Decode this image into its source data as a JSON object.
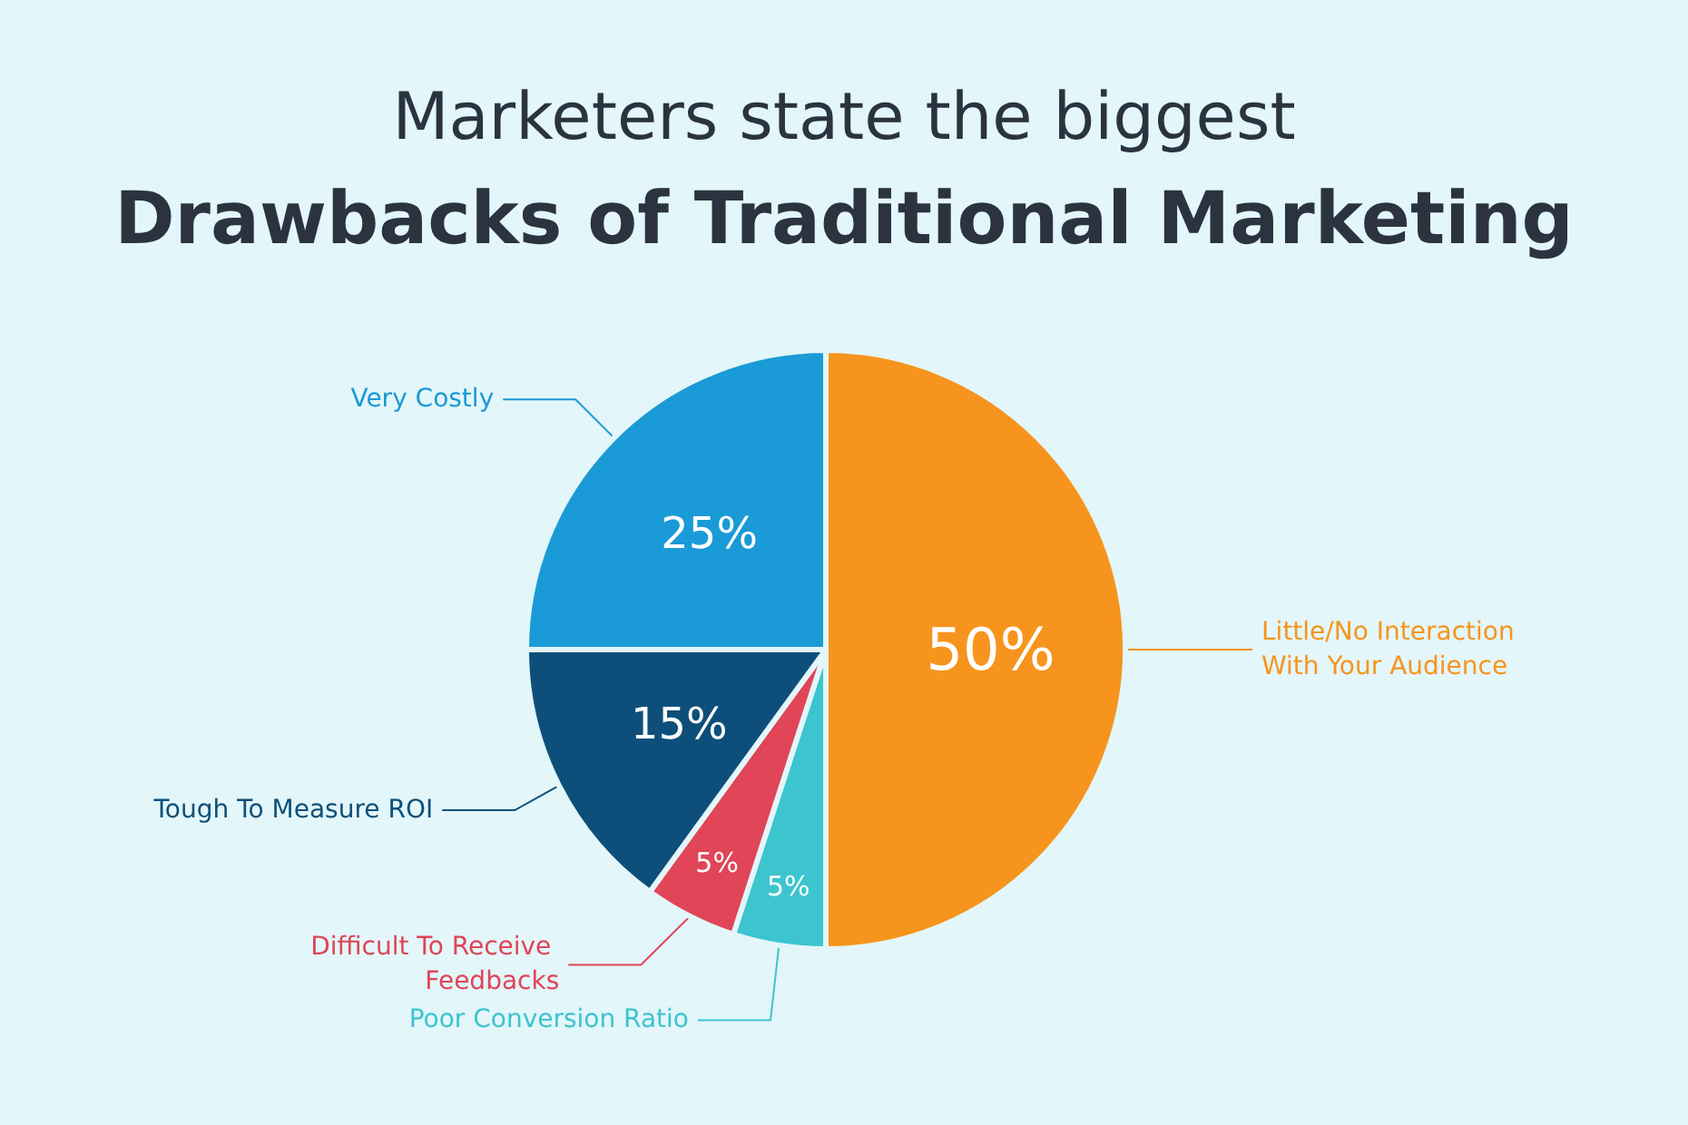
{
  "chart_data": {
    "type": "pie",
    "title": "Drawbacks of Traditional Marketing",
    "subtitle": "Marketers state the biggest",
    "categories": [
      "Little/No Interaction With Your Audience",
      "Poor Conversion Ratio",
      "Difficult To Receive Feedbacks",
      "Tough To Measure ROI",
      "Very Costly"
    ],
    "values": [
      50,
      5,
      5,
      15,
      25
    ],
    "colors": [
      "#f7941d",
      "#3cc4cf",
      "#e04558",
      "#0d4f7a",
      "#1a9ad6"
    ],
    "value_labels": [
      "50%",
      "5%",
      "5%",
      "15%",
      "25%"
    ],
    "legend": false
  }
}
